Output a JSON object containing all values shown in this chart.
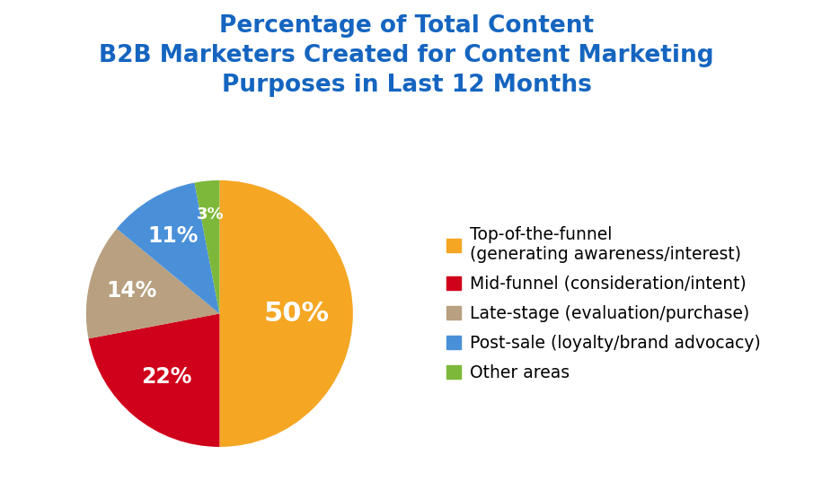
{
  "title": "Percentage of Total Content\nB2B Marketers Created for Content Marketing\nPurposes in Last 12 Months",
  "title_color": "#1565C0",
  "title_fontsize": 19,
  "slices": [
    50,
    22,
    14,
    11,
    3
  ],
  "labels": [
    "50%",
    "22%",
    "14%",
    "11%",
    "3%"
  ],
  "colors": [
    "#F5A623",
    "#D0021B",
    "#B8A080",
    "#4A90D9",
    "#7DB83A"
  ],
  "legend_labels": [
    "Top-of-the-funnel\n(generating awareness/interest)",
    "Mid-funnel (consideration/intent)",
    "Late-stage (evaluation/purchase)",
    "Post-sale (loyalty/brand advocacy)",
    "Other areas"
  ],
  "legend_colors": [
    "#F5A623",
    "#D0021B",
    "#B8A080",
    "#4A90D9",
    "#7DB83A"
  ],
  "legend_text_color": "#000000",
  "background_color": "#ffffff",
  "label_fontsize_large": 22,
  "label_fontsize_medium": 17,
  "label_fontsize_small": 13,
  "label_color": "white",
  "legend_fontsize": 13.5
}
